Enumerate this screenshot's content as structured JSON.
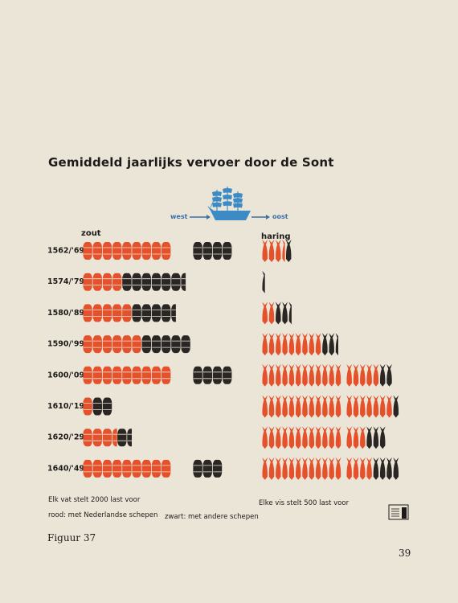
{
  "title": "Gemiddeld jaarlijks vervoer door de Sont",
  "direction": {
    "from": "west",
    "to": "oost"
  },
  "colors": {
    "dutch": "#e5512b",
    "other": "#2a2624",
    "ship": "#3d8bc4",
    "paper": "#ebe5d8"
  },
  "icons": {
    "ship": "sailing-ship-icon",
    "barrel": "barrel-icon",
    "fish": "herring-fish-icon"
  },
  "legend": {
    "salt_unit": "Elk vat stelt 2000 last voor",
    "fish_unit": "Elke vis stelt 500 last voor",
    "red_meaning": "rood: met Nederlandse schepen",
    "black_meaning": "zwart: met andere schepen"
  },
  "caption": "Figuur 37",
  "page_number": "39",
  "chart_data": {
    "type": "bar",
    "title": "Gemiddeld jaarlijks vervoer door de Sont",
    "categories": [
      "1562/'69",
      "1574/'79",
      "1580/'89",
      "1590/'99",
      "1600/'09",
      "1610/'19",
      "1620/'29",
      "1640/'49"
    ],
    "panels": [
      {
        "label": "zout",
        "unit_label": "Elk vat stelt 2000 last voor",
        "unit_size": 2000,
        "series": [
          {
            "name": "rood: met Nederlandse schepen",
            "values": [
              9,
              4,
              5,
              6,
              9,
              1,
              3.5,
              9
            ]
          },
          {
            "name": "zwart: met andere schepen",
            "values": [
              4,
              6.5,
              4.5,
              5,
              4,
              2,
              1.5,
              3
            ]
          }
        ]
      },
      {
        "label": "haring",
        "unit_label": "Elke vis stelt 500 last voor",
        "unit_size": 500,
        "series": [
          {
            "name": "rood: met Nederlandse schepen",
            "values": [
              3.5,
              0,
              2,
              9,
              17,
              19,
              15,
              16
            ]
          },
          {
            "name": "zwart: met andere schepen",
            "values": [
              1,
              0.5,
              2.5,
              2.5,
              2,
              1,
              3,
              4
            ]
          }
        ]
      }
    ]
  }
}
